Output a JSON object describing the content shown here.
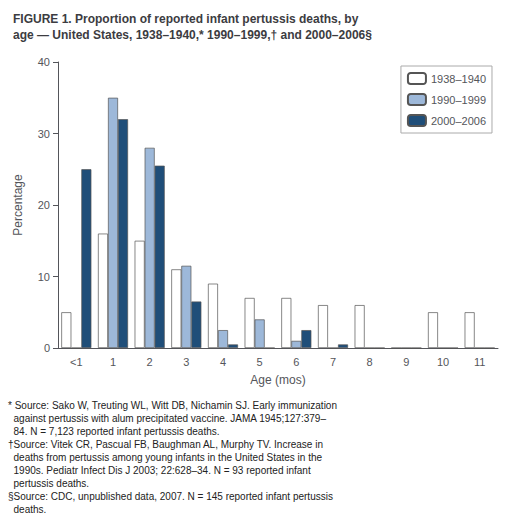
{
  "chart_data": {
    "type": "bar",
    "title": "FIGURE 1. Proportion of reported infant pertussis deaths, by\nage — United States, 1938–1940,* 1990–1999,† and 2000–2006§",
    "xlabel": "Age (mos)",
    "ylabel": "Percentage",
    "categories": [
      "<1",
      "1",
      "2",
      "3",
      "4",
      "5",
      "6",
      "7",
      "8",
      "9",
      "10",
      "11"
    ],
    "series": [
      {
        "name": "1938–1940",
        "color": "#ffffff",
        "values": [
          5,
          16,
          15,
          11,
          9,
          7,
          7,
          6,
          6,
          0,
          5,
          5
        ]
      },
      {
        "name": "1990–1999",
        "color": "#9db8d9",
        "values": [
          0,
          35,
          28,
          11.5,
          2.5,
          4,
          1,
          0,
          0,
          0,
          0,
          0
        ]
      },
      {
        "name": "2000–2006",
        "color": "#1f4e79",
        "values": [
          25,
          32,
          25.5,
          6.5,
          0.5,
          0,
          2.5,
          0.5,
          0,
          0,
          0,
          0
        ]
      }
    ],
    "ylim": [
      0,
      40
    ],
    "yticks": [
      0,
      10,
      20,
      30,
      40
    ],
    "grid": false,
    "legend": "upper right",
    "annotations": [
      "* Source: Sako W, Treuting WL, Witt DB, Nichamin SJ. Early immunization",
      "  against pertussis with alum precipitated vaccine. JAMA 1945;127:379–",
      "  84. N = 7,123 reported infant pertussis deaths.",
      "†Source: Vitek CR, Pascual FB, Baughman AL, Murphy TV. Increase in",
      "  deaths from pertussis among young infants in the United States in the",
      "  1990s. Pediatr Infect Dis J 2003; 22:628–34. N = 93 reported infant",
      "  pertussis deaths.",
      "§Source: CDC, unpublished data, 2007. N = 145 reported infant pertussis",
      "  deaths."
    ]
  }
}
